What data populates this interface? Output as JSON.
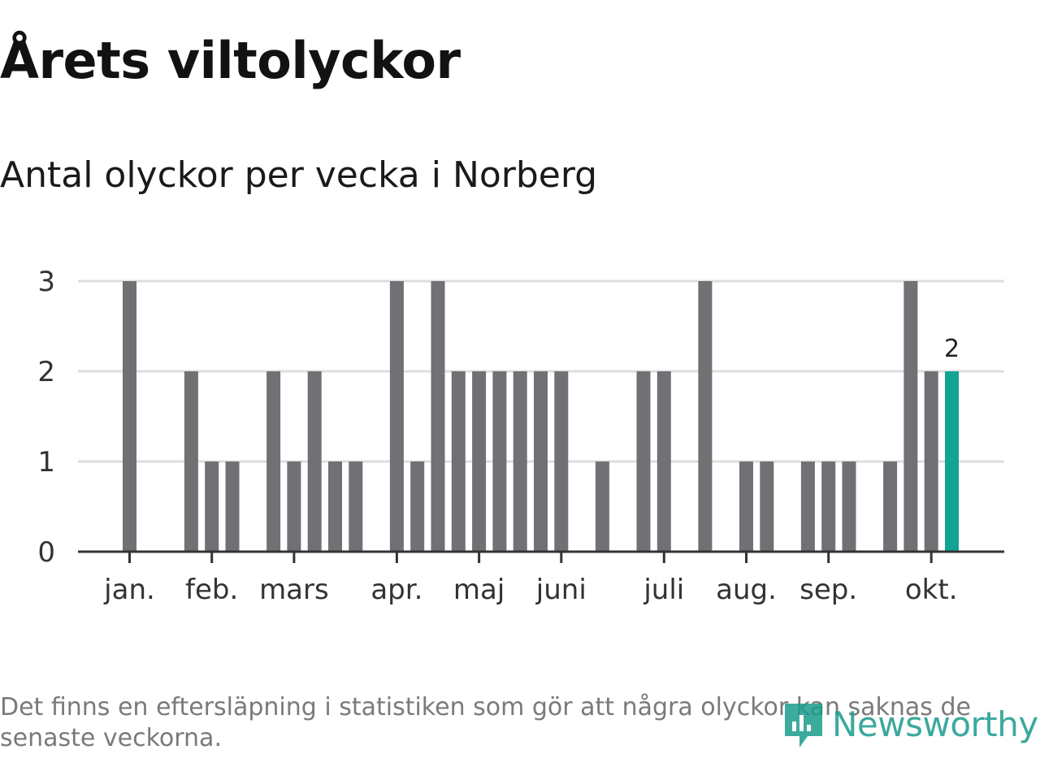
{
  "title": "Årets viltolyckor",
  "subtitle": "Antal olyckor per vecka i Norberg",
  "footnote": "Det finns en eftersläpning i statistiken som gör att några olyckor kan saknas de senaste veckorna.",
  "brand": {
    "name": "Newsworthy",
    "icon": "newsworthy-logo-icon",
    "color": "#1a9b8c"
  },
  "colors": {
    "bar": "#707075",
    "highlight": "#12a493",
    "grid": "#dddddd",
    "axis": "#333333"
  },
  "chart_data": {
    "type": "bar",
    "x_unit": "week",
    "x": [
      1,
      2,
      3,
      4,
      5,
      6,
      7,
      8,
      9,
      10,
      11,
      12,
      13,
      14,
      15,
      16,
      17,
      18,
      19,
      20,
      21,
      22,
      23,
      24,
      25,
      26,
      27,
      28,
      29,
      30,
      31,
      32,
      33,
      34,
      35,
      36,
      37,
      38,
      39,
      40,
      41,
      42
    ],
    "values": [
      3,
      0,
      0,
      2,
      1,
      1,
      0,
      2,
      1,
      2,
      1,
      1,
      0,
      3,
      1,
      3,
      2,
      2,
      2,
      2,
      2,
      2,
      0,
      1,
      0,
      2,
      2,
      0,
      3,
      0,
      1,
      1,
      0,
      1,
      1,
      1,
      0,
      1,
      3,
      2,
      2,
      null
    ],
    "highlight_index": 40,
    "highlight_label": "2",
    "ylim": [
      0,
      3
    ],
    "yticks": [
      "0",
      "1",
      "2",
      "3"
    ],
    "months": [
      {
        "label": "jan.",
        "week": 1
      },
      {
        "label": "feb.",
        "week": 5
      },
      {
        "label": "mars",
        "week": 9
      },
      {
        "label": "apr.",
        "week": 14
      },
      {
        "label": "maj",
        "week": 18
      },
      {
        "label": "juni",
        "week": 22
      },
      {
        "label": "juli",
        "week": 27
      },
      {
        "label": "aug.",
        "week": 31
      },
      {
        "label": "sep.",
        "week": 35
      },
      {
        "label": "okt.",
        "week": 40
      }
    ],
    "grid": true,
    "legend": "none"
  }
}
